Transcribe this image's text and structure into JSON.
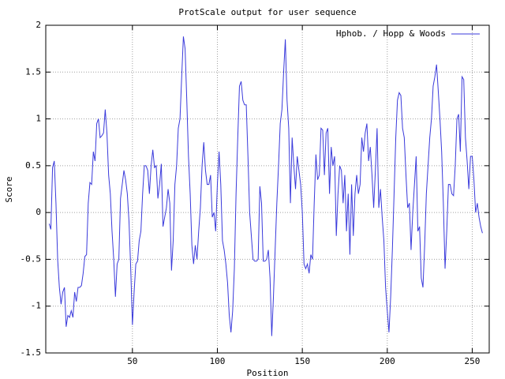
{
  "chart_data": {
    "type": "line",
    "title": "ProtScale output for user sequence",
    "xlabel": "Position",
    "ylabel": "Score",
    "x": [
      1,
      2,
      3,
      4,
      5,
      6,
      7,
      8,
      9,
      10,
      11,
      12,
      13,
      14,
      15,
      16,
      17,
      18,
      19,
      20,
      21,
      22,
      23,
      24,
      25,
      26,
      27,
      28,
      29,
      30,
      31,
      32,
      33,
      34,
      35,
      36,
      37,
      38,
      39,
      40,
      41,
      42,
      43,
      44,
      45,
      46,
      47,
      48,
      49,
      50,
      51,
      52,
      53,
      54,
      55,
      56,
      57,
      58,
      59,
      60,
      61,
      62,
      63,
      64,
      65,
      66,
      67,
      68,
      69,
      70,
      71,
      72,
      73,
      74,
      75,
      76,
      77,
      78,
      79,
      80,
      81,
      82,
      83,
      84,
      85,
      86,
      87,
      88,
      89,
      90,
      91,
      92,
      93,
      94,
      95,
      96,
      97,
      98,
      99,
      100,
      101,
      102,
      103,
      104,
      105,
      106,
      107,
      108,
      109,
      110,
      111,
      112,
      113,
      114,
      115,
      116,
      117,
      118,
      119,
      120,
      121,
      122,
      123,
      124,
      125,
      126,
      127,
      128,
      129,
      130,
      131,
      132,
      133,
      134,
      135,
      136,
      137,
      138,
      139,
      140,
      141,
      142,
      143,
      144,
      145,
      146,
      147,
      148,
      149,
      150,
      151,
      152,
      153,
      154,
      155,
      156,
      157,
      158,
      159,
      160,
      161,
      162,
      163,
      164,
      165,
      166,
      167,
      168,
      169,
      170,
      171,
      172,
      173,
      174,
      175,
      176,
      177,
      178,
      179,
      180,
      181,
      182,
      183,
      184,
      185,
      186,
      187,
      188,
      189,
      190,
      191,
      192,
      193,
      194,
      195,
      196,
      197,
      198,
      199,
      200,
      201,
      202,
      203,
      204,
      205,
      206,
      207,
      208,
      209,
      210,
      211,
      212,
      213,
      214,
      215,
      216,
      217,
      218,
      219,
      220,
      221,
      222,
      223,
      224,
      225,
      226,
      227,
      228,
      229,
      230,
      231,
      232,
      233,
      234,
      235,
      236,
      237,
      238,
      239,
      240,
      241,
      242,
      243,
      244,
      245,
      246,
      247,
      248,
      249,
      250,
      251,
      252,
      253,
      254,
      255,
      256
    ],
    "series": [
      {
        "name": "Hphob. / Hopp & Woods",
        "color": "#3a3adb",
        "values": [
          -0.12,
          -0.18,
          0.48,
          0.55,
          0.1,
          -0.5,
          -0.8,
          -0.98,
          -0.85,
          -0.8,
          -1.22,
          -1.1,
          -1.12,
          -1.05,
          -1.12,
          -0.85,
          -0.95,
          -0.8,
          -0.8,
          -0.78,
          -0.65,
          -0.47,
          -0.45,
          0.1,
          0.32,
          0.3,
          0.65,
          0.55,
          0.95,
          1.0,
          0.8,
          0.82,
          0.85,
          1.1,
          0.85,
          0.4,
          0.2,
          -0.2,
          -0.5,
          -0.9,
          -0.55,
          -0.5,
          0.15,
          0.3,
          0.45,
          0.35,
          0.2,
          -0.1,
          -0.6,
          -1.2,
          -0.85,
          -0.55,
          -0.52,
          -0.3,
          -0.2,
          0.2,
          0.5,
          0.5,
          0.45,
          0.2,
          0.5,
          0.67,
          0.48,
          0.5,
          0.15,
          0.3,
          0.52,
          -0.15,
          -0.05,
          0.05,
          0.25,
          0.1,
          -0.62,
          -0.3,
          0.3,
          0.5,
          0.9,
          1.0,
          1.45,
          1.88,
          1.75,
          1.2,
          0.6,
          0.2,
          -0.35,
          -0.55,
          -0.35,
          -0.5,
          -0.2,
          0.05,
          0.5,
          0.75,
          0.45,
          0.3,
          0.3,
          0.4,
          -0.05,
          0.0,
          -0.2,
          0.3,
          0.65,
          0.3,
          -0.3,
          -0.4,
          -0.55,
          -0.75,
          -1.1,
          -1.28,
          -1.05,
          -0.6,
          0.2,
          0.8,
          1.35,
          1.4,
          1.2,
          1.15,
          1.15,
          0.6,
          0.0,
          -0.25,
          -0.5,
          -0.52,
          -0.52,
          -0.5,
          0.28,
          0.1,
          -0.52,
          -0.52,
          -0.5,
          -0.4,
          -0.7,
          -1.32,
          -0.9,
          -0.4,
          0.1,
          0.5,
          0.95,
          1.1,
          1.5,
          1.85,
          1.2,
          0.9,
          0.1,
          0.8,
          0.5,
          0.25,
          0.6,
          0.45,
          0.3,
          0.0,
          -0.55,
          -0.6,
          -0.55,
          -0.65,
          -0.45,
          -0.5,
          0.1,
          0.62,
          0.35,
          0.4,
          0.9,
          0.88,
          0.4,
          0.85,
          0.9,
          0.2,
          0.7,
          0.5,
          0.6,
          -0.25,
          0.2,
          0.5,
          0.45,
          0.1,
          0.4,
          -0.2,
          0.2,
          -0.45,
          0.3,
          -0.25,
          0.2,
          0.4,
          0.2,
          0.3,
          0.8,
          0.65,
          0.85,
          0.95,
          0.55,
          0.7,
          0.4,
          0.05,
          0.45,
          0.9,
          0.05,
          0.25,
          -0.05,
          -0.3,
          -0.8,
          -1.05,
          -1.28,
          -0.9,
          -0.4,
          0.2,
          0.8,
          1.2,
          1.28,
          1.25,
          0.9,
          0.8,
          0.4,
          0.05,
          0.1,
          -0.4,
          0.0,
          0.3,
          0.6,
          -0.2,
          -0.15,
          -0.7,
          -0.8,
          -0.35,
          0.2,
          0.5,
          0.8,
          1.0,
          1.35,
          1.45,
          1.58,
          1.3,
          1.0,
          0.65,
          0.1,
          -0.6,
          -0.2,
          0.3,
          0.3,
          0.2,
          0.18,
          0.5,
          1.0,
          1.05,
          0.65,
          1.45,
          1.42,
          0.8,
          0.55,
          0.25,
          0.6,
          0.6,
          0.35,
          0.0,
          0.1,
          -0.05,
          -0.15,
          -0.22
        ]
      }
    ],
    "xlim": [
      -1,
      260
    ],
    "xticks": [
      50,
      100,
      150,
      200,
      250
    ],
    "ylim": [
      -1.5,
      2
    ],
    "yticks": [
      -1.5,
      -1,
      -0.5,
      0,
      0.5,
      1,
      1.5,
      2
    ],
    "grid": true,
    "legend": "upper right"
  }
}
